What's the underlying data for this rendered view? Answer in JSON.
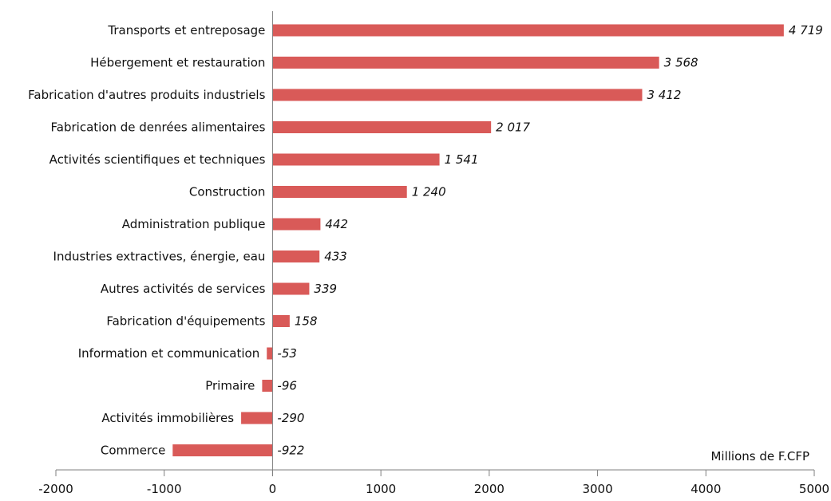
{
  "chart_data": {
    "type": "bar",
    "orientation": "horizontal",
    "categories": [
      "Transports et entreposage",
      "Hébergement et restauration",
      "Fabrication d'autres produits industriels",
      "Fabrication de denrées alimentaires",
      "Activités scientifiques et techniques",
      "Construction",
      "Administration publique",
      "Industries extractives, énergie, eau",
      "Autres activités de services",
      "Fabrication d'équipements",
      "Information et communication",
      "Primaire",
      "Activités immobilières",
      "Commerce"
    ],
    "values": [
      4719,
      3568,
      3412,
      2017,
      1541,
      1240,
      442,
      433,
      339,
      158,
      -53,
      -96,
      -290,
      -922
    ],
    "value_labels": [
      "4 719",
      "3 568",
      "3 412",
      "2 017",
      "1 541",
      "1 240",
      "442",
      "433",
      "339",
      "158",
      "-53",
      "-96",
      "-290",
      "-922"
    ],
    "x_ticks": [
      -2000,
      -1000,
      0,
      1000,
      2000,
      3000,
      4000,
      5000
    ],
    "x_tick_labels": [
      "-2000",
      "-1000",
      "0",
      "1000",
      "2000",
      "3000",
      "4000",
      "5000"
    ],
    "xlim": [
      -2000,
      5000
    ],
    "unit_label": "Millions de F.CFP",
    "title": "",
    "xlabel": "",
    "ylabel": "",
    "grid": false,
    "legend": "none",
    "bar_color": "#d95a58",
    "axis_color": "#7f7f7f"
  }
}
